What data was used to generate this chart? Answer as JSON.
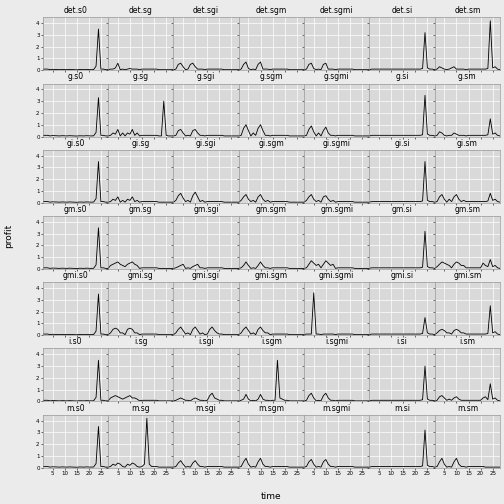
{
  "rows": [
    "det",
    "g",
    "gi",
    "gm",
    "gmi",
    "i",
    "m"
  ],
  "cols": [
    "s0",
    "sg",
    "sgi",
    "sgm",
    "sgmi",
    "si",
    "sm"
  ],
  "time_points": 28,
  "ylim": [
    0,
    4.5
  ],
  "yticks": [
    0,
    1,
    2,
    3,
    4
  ],
  "xticks": [
    5,
    10,
    15,
    20,
    25
  ],
  "xlabel": "time",
  "ylabel": "profit",
  "bg_color": "#EBEBEB",
  "plot_bg_color": "#D9D9D9",
  "grid_color": "#FFFFFF",
  "line_color": "#000000",
  "strip_bg": "#BFBFBF",
  "font_size": 5.5,
  "line_width": 0.6,
  "series": {
    "det.s0": [
      0.1,
      0.1,
      0.1,
      0.05,
      0.08,
      0.07,
      0.06,
      0.05,
      0.07,
      0.06,
      0.05,
      0.07,
      0.06,
      0.05,
      0.04,
      0.06,
      0.06,
      0.05,
      0.07,
      0.06,
      0.05,
      0.06,
      0.35,
      3.5,
      0.1,
      0.1,
      0.05,
      0.05
    ],
    "det.sg": [
      0.05,
      0.1,
      0.1,
      0.2,
      0.6,
      0.05,
      0.1,
      0.05,
      0.1,
      0.15,
      0.1,
      0.1,
      0.1,
      0.05,
      0.1,
      0.1,
      0.1,
      0.1,
      0.1,
      0.1,
      0.1,
      0.05,
      0.05,
      0.05,
      0.05,
      0.05,
      0.05,
      0.05
    ],
    "det.sgi": [
      0.05,
      0.1,
      0.5,
      0.6,
      0.3,
      0.05,
      0.1,
      0.5,
      0.6,
      0.3,
      0.1,
      0.1,
      0.1,
      0.05,
      0.1,
      0.1,
      0.1,
      0.1,
      0.1,
      0.1,
      0.1,
      0.05,
      0.05,
      0.05,
      0.05,
      0.05,
      0.05,
      0.05
    ],
    "det.sgm": [
      0.05,
      0.1,
      0.5,
      0.7,
      0.15,
      0.05,
      0.1,
      0.05,
      0.5,
      0.7,
      0.1,
      0.1,
      0.1,
      0.05,
      0.1,
      0.1,
      0.1,
      0.1,
      0.1,
      0.1,
      0.1,
      0.05,
      0.05,
      0.05,
      0.05,
      0.05,
      0.05,
      0.05
    ],
    "det.sgmi": [
      0.05,
      0.1,
      0.5,
      0.6,
      0.15,
      0.05,
      0.1,
      0.05,
      0.5,
      0.6,
      0.1,
      0.1,
      0.1,
      0.05,
      0.1,
      0.1,
      0.1,
      0.1,
      0.1,
      0.1,
      0.1,
      0.05,
      0.05,
      0.05,
      0.05,
      0.05,
      0.05,
      0.05
    ],
    "det.si": [
      0.05,
      0.1,
      0.1,
      0.1,
      0.1,
      0.1,
      0.1,
      0.1,
      0.1,
      0.1,
      0.1,
      0.1,
      0.1,
      0.1,
      0.1,
      0.1,
      0.1,
      0.1,
      0.1,
      0.1,
      0.1,
      0.1,
      0.15,
      3.2,
      0.2,
      0.1,
      0.1,
      0.05
    ],
    "det.sm": [
      0.05,
      0.1,
      0.3,
      0.2,
      0.1,
      0.05,
      0.1,
      0.2,
      0.3,
      0.1,
      0.1,
      0.1,
      0.1,
      0.05,
      0.1,
      0.1,
      0.1,
      0.1,
      0.1,
      0.1,
      0.1,
      0.1,
      0.15,
      4.2,
      0.2,
      0.3,
      0.1,
      0.05
    ],
    "g.s0": [
      0.1,
      0.1,
      0.1,
      0.05,
      0.08,
      0.07,
      0.06,
      0.05,
      0.07,
      0.06,
      0.05,
      0.07,
      0.06,
      0.05,
      0.04,
      0.06,
      0.06,
      0.05,
      0.07,
      0.06,
      0.05,
      0.06,
      0.35,
      3.3,
      0.1,
      0.1,
      0.05,
      0.05
    ],
    "g.sg": [
      0.05,
      0.1,
      0.3,
      0.2,
      0.6,
      0.05,
      0.3,
      0.05,
      0.3,
      0.2,
      0.6,
      0.1,
      0.3,
      0.05,
      0.1,
      0.1,
      0.1,
      0.1,
      0.1,
      0.1,
      0.1,
      0.05,
      0.05,
      3.0,
      0.1,
      0.05,
      0.05,
      0.05
    ],
    "g.sgi": [
      0.05,
      0.1,
      0.5,
      0.6,
      0.3,
      0.05,
      0.1,
      0.05,
      0.5,
      0.6,
      0.3,
      0.1,
      0.1,
      0.05,
      0.1,
      0.1,
      0.1,
      0.1,
      0.1,
      0.1,
      0.1,
      0.05,
      0.05,
      0.05,
      0.05,
      0.05,
      0.05,
      0.05
    ],
    "g.sgm": [
      0.05,
      0.1,
      0.7,
      1.0,
      0.5,
      0.05,
      0.3,
      0.1,
      0.7,
      1.0,
      0.5,
      0.1,
      0.1,
      0.05,
      0.1,
      0.1,
      0.1,
      0.1,
      0.1,
      0.1,
      0.1,
      0.05,
      0.05,
      0.05,
      0.05,
      0.05,
      0.05,
      0.05
    ],
    "g.sgmi": [
      0.05,
      0.1,
      0.6,
      0.9,
      0.4,
      0.05,
      0.3,
      0.05,
      0.5,
      0.8,
      0.3,
      0.1,
      0.1,
      0.05,
      0.1,
      0.1,
      0.1,
      0.1,
      0.1,
      0.1,
      0.1,
      0.05,
      0.05,
      0.05,
      0.05,
      0.05,
      0.05,
      0.05
    ],
    "g.si": [
      0.05,
      0.1,
      0.1,
      0.1,
      0.1,
      0.1,
      0.1,
      0.1,
      0.1,
      0.1,
      0.1,
      0.1,
      0.1,
      0.1,
      0.1,
      0.1,
      0.1,
      0.1,
      0.1,
      0.1,
      0.1,
      0.1,
      0.15,
      3.5,
      0.2,
      0.1,
      0.1,
      0.05
    ],
    "g.sm": [
      0.05,
      0.1,
      0.4,
      0.3,
      0.1,
      0.05,
      0.1,
      0.1,
      0.3,
      0.2,
      0.1,
      0.1,
      0.1,
      0.05,
      0.1,
      0.1,
      0.1,
      0.1,
      0.1,
      0.1,
      0.1,
      0.1,
      0.15,
      1.5,
      0.2,
      0.3,
      0.1,
      0.05
    ],
    "gi.s0": [
      0.1,
      0.1,
      0.1,
      0.05,
      0.08,
      0.07,
      0.06,
      0.05,
      0.07,
      0.06,
      0.05,
      0.07,
      0.06,
      0.05,
      0.04,
      0.06,
      0.06,
      0.05,
      0.07,
      0.06,
      0.05,
      0.06,
      0.35,
      3.5,
      0.1,
      0.1,
      0.05,
      0.05
    ],
    "gi.sg": [
      0.05,
      0.1,
      0.3,
      0.2,
      0.5,
      0.05,
      0.2,
      0.05,
      0.3,
      0.2,
      0.5,
      0.1,
      0.2,
      0.05,
      0.1,
      0.1,
      0.1,
      0.1,
      0.1,
      0.1,
      0.1,
      0.05,
      0.05,
      0.05,
      0.05,
      0.05,
      0.05,
      0.05
    ],
    "gi.sgi": [
      0.05,
      0.2,
      0.6,
      0.8,
      0.4,
      0.1,
      0.2,
      0.05,
      0.6,
      0.9,
      0.5,
      0.1,
      0.2,
      0.05,
      0.1,
      0.1,
      0.1,
      0.1,
      0.1,
      0.1,
      0.1,
      0.05,
      0.05,
      0.05,
      0.05,
      0.05,
      0.05,
      0.05
    ],
    "gi.sgm": [
      0.05,
      0.2,
      0.5,
      0.7,
      0.3,
      0.1,
      0.2,
      0.05,
      0.5,
      0.7,
      0.3,
      0.1,
      0.2,
      0.05,
      0.1,
      0.1,
      0.1,
      0.1,
      0.1,
      0.1,
      0.1,
      0.05,
      0.05,
      0.05,
      0.05,
      0.05,
      0.05,
      0.05
    ],
    "gi.sgmi": [
      0.05,
      0.2,
      0.5,
      0.7,
      0.3,
      0.1,
      0.2,
      0.05,
      0.5,
      0.6,
      0.3,
      0.1,
      0.2,
      0.05,
      0.1,
      0.1,
      0.1,
      0.1,
      0.1,
      0.1,
      0.1,
      0.05,
      0.05,
      0.05,
      0.05,
      0.05,
      0.05,
      0.05
    ],
    "gi.si": [
      0.05,
      0.1,
      0.1,
      0.1,
      0.1,
      0.1,
      0.1,
      0.1,
      0.1,
      0.1,
      0.1,
      0.1,
      0.1,
      0.1,
      0.1,
      0.1,
      0.1,
      0.1,
      0.1,
      0.1,
      0.1,
      0.1,
      0.15,
      3.5,
      0.2,
      0.1,
      0.1,
      0.05
    ],
    "gi.sm": [
      0.05,
      0.1,
      0.5,
      0.7,
      0.3,
      0.05,
      0.3,
      0.1,
      0.5,
      0.7,
      0.3,
      0.1,
      0.2,
      0.1,
      0.1,
      0.1,
      0.1,
      0.1,
      0.1,
      0.1,
      0.1,
      0.1,
      0.15,
      0.8,
      0.2,
      0.3,
      0.1,
      0.05
    ],
    "gm.s0": [
      0.1,
      0.1,
      0.1,
      0.05,
      0.08,
      0.07,
      0.06,
      0.05,
      0.07,
      0.06,
      0.05,
      0.07,
      0.06,
      0.05,
      0.04,
      0.06,
      0.06,
      0.05,
      0.07,
      0.06,
      0.05,
      0.06,
      0.35,
      3.5,
      0.1,
      0.1,
      0.05,
      0.05
    ],
    "gm.sg": [
      0.05,
      0.3,
      0.4,
      0.5,
      0.6,
      0.4,
      0.3,
      0.2,
      0.4,
      0.5,
      0.6,
      0.4,
      0.3,
      0.05,
      0.1,
      0.1,
      0.1,
      0.1,
      0.1,
      0.1,
      0.1,
      0.05,
      0.05,
      0.05,
      0.05,
      0.05,
      0.05,
      0.05
    ],
    "gm.sgi": [
      0.05,
      0.1,
      0.2,
      0.3,
      0.4,
      0.05,
      0.1,
      0.05,
      0.2,
      0.3,
      0.4,
      0.1,
      0.1,
      0.05,
      0.1,
      0.1,
      0.1,
      0.1,
      0.1,
      0.1,
      0.1,
      0.05,
      0.05,
      0.05,
      0.05,
      0.05,
      0.05,
      0.05
    ],
    "gm.sgm": [
      0.05,
      0.1,
      0.3,
      0.6,
      0.3,
      0.05,
      0.1,
      0.05,
      0.3,
      0.6,
      0.3,
      0.1,
      0.1,
      0.05,
      0.1,
      0.1,
      0.1,
      0.1,
      0.1,
      0.1,
      0.1,
      0.05,
      0.05,
      0.05,
      0.05,
      0.05,
      0.05,
      0.05
    ],
    "gm.sgmi": [
      0.05,
      0.1,
      0.4,
      0.7,
      0.5,
      0.3,
      0.4,
      0.1,
      0.4,
      0.7,
      0.5,
      0.3,
      0.4,
      0.05,
      0.1,
      0.1,
      0.1,
      0.1,
      0.1,
      0.1,
      0.1,
      0.05,
      0.05,
      0.05,
      0.05,
      0.05,
      0.05,
      0.05
    ],
    "gm.si": [
      0.05,
      0.1,
      0.1,
      0.1,
      0.1,
      0.1,
      0.1,
      0.1,
      0.1,
      0.1,
      0.1,
      0.1,
      0.1,
      0.1,
      0.1,
      0.1,
      0.1,
      0.1,
      0.1,
      0.1,
      0.1,
      0.1,
      0.15,
      3.2,
      0.2,
      0.1,
      0.1,
      0.05
    ],
    "gm.sm": [
      0.05,
      0.2,
      0.4,
      0.6,
      0.5,
      0.4,
      0.3,
      0.1,
      0.4,
      0.6,
      0.5,
      0.3,
      0.3,
      0.1,
      0.1,
      0.1,
      0.1,
      0.1,
      0.1,
      0.1,
      0.5,
      0.3,
      0.2,
      0.8,
      0.2,
      0.3,
      0.1,
      0.05
    ],
    "gmi.s0": [
      0.1,
      0.1,
      0.1,
      0.05,
      0.08,
      0.07,
      0.06,
      0.05,
      0.07,
      0.06,
      0.05,
      0.07,
      0.06,
      0.05,
      0.04,
      0.06,
      0.06,
      0.05,
      0.07,
      0.06,
      0.05,
      0.06,
      0.35,
      3.5,
      0.1,
      0.1,
      0.05,
      0.05
    ],
    "gmi.sg": [
      0.05,
      0.2,
      0.5,
      0.6,
      0.5,
      0.2,
      0.2,
      0.05,
      0.5,
      0.6,
      0.5,
      0.2,
      0.2,
      0.05,
      0.1,
      0.1,
      0.1,
      0.1,
      0.1,
      0.1,
      0.1,
      0.05,
      0.05,
      0.05,
      0.05,
      0.05,
      0.05,
      0.05
    ],
    "gmi.sgi": [
      0.05,
      0.2,
      0.5,
      0.7,
      0.4,
      0.1,
      0.2,
      0.05,
      0.5,
      0.7,
      0.4,
      0.1,
      0.2,
      0.05,
      0.1,
      0.5,
      0.7,
      0.4,
      0.2,
      0.1,
      0.1,
      0.05,
      0.05,
      0.05,
      0.05,
      0.05,
      0.05,
      0.05
    ],
    "gmi.sgm": [
      0.05,
      0.2,
      0.5,
      0.7,
      0.4,
      0.1,
      0.2,
      0.05,
      0.5,
      0.7,
      0.4,
      0.2,
      0.2,
      0.05,
      0.1,
      0.1,
      0.1,
      0.1,
      0.1,
      0.1,
      0.1,
      0.05,
      0.05,
      0.05,
      0.05,
      0.05,
      0.05,
      0.05
    ],
    "gmi.sgmi": [
      0.05,
      0.1,
      0.1,
      0.1,
      3.6,
      0.1,
      0.1,
      0.05,
      0.1,
      0.1,
      0.1,
      0.1,
      0.1,
      0.05,
      0.1,
      0.1,
      0.1,
      0.1,
      0.1,
      0.1,
      0.1,
      0.05,
      0.05,
      0.05,
      0.05,
      0.05,
      0.05,
      0.05
    ],
    "gmi.si": [
      0.05,
      0.1,
      0.1,
      0.1,
      0.1,
      0.1,
      0.1,
      0.1,
      0.1,
      0.1,
      0.1,
      0.1,
      0.1,
      0.1,
      0.1,
      0.1,
      0.1,
      0.1,
      0.1,
      0.1,
      0.1,
      0.1,
      0.15,
      1.5,
      0.2,
      0.1,
      0.1,
      0.05
    ],
    "gmi.sm": [
      0.05,
      0.2,
      0.4,
      0.5,
      0.4,
      0.2,
      0.2,
      0.1,
      0.4,
      0.5,
      0.4,
      0.2,
      0.2,
      0.1,
      0.1,
      0.1,
      0.1,
      0.1,
      0.1,
      0.1,
      0.1,
      0.1,
      0.15,
      2.5,
      0.2,
      0.3,
      0.1,
      0.05
    ],
    "i.s0": [
      0.1,
      0.1,
      0.1,
      0.05,
      0.08,
      0.07,
      0.06,
      0.05,
      0.07,
      0.06,
      0.05,
      0.07,
      0.06,
      0.05,
      0.04,
      0.06,
      0.06,
      0.05,
      0.07,
      0.06,
      0.05,
      0.06,
      0.35,
      3.5,
      0.1,
      0.1,
      0.05,
      0.05
    ],
    "i.sg": [
      0.05,
      0.3,
      0.4,
      0.5,
      0.4,
      0.3,
      0.2,
      0.3,
      0.4,
      0.5,
      0.3,
      0.3,
      0.2,
      0.05,
      0.1,
      0.1,
      0.1,
      0.1,
      0.1,
      0.1,
      0.1,
      0.05,
      0.05,
      0.05,
      0.05,
      0.05,
      0.05,
      0.05
    ],
    "i.sgi": [
      0.05,
      0.1,
      0.2,
      0.3,
      0.2,
      0.1,
      0.1,
      0.05,
      0.2,
      0.3,
      0.2,
      0.1,
      0.1,
      0.05,
      0.1,
      0.5,
      0.7,
      0.3,
      0.2,
      0.1,
      0.1,
      0.05,
      0.05,
      0.05,
      0.05,
      0.05,
      0.05,
      0.05
    ],
    "i.sgm": [
      0.05,
      0.1,
      0.2,
      0.6,
      0.2,
      0.05,
      0.1,
      0.05,
      0.2,
      0.6,
      0.2,
      0.1,
      0.1,
      0.05,
      0.1,
      0.1,
      3.5,
      0.3,
      0.2,
      0.1,
      0.1,
      0.05,
      0.05,
      0.05,
      0.05,
      0.05,
      0.05,
      0.05
    ],
    "i.sgmi": [
      0.05,
      0.1,
      0.5,
      0.7,
      0.3,
      0.05,
      0.1,
      0.05,
      0.5,
      0.7,
      0.3,
      0.1,
      0.1,
      0.05,
      0.1,
      0.1,
      0.1,
      0.1,
      0.1,
      0.1,
      0.1,
      0.05,
      0.05,
      0.05,
      0.05,
      0.05,
      0.05,
      0.05
    ],
    "i.si": [
      0.05,
      0.1,
      0.1,
      0.1,
      0.1,
      0.1,
      0.1,
      0.1,
      0.1,
      0.1,
      0.1,
      0.1,
      0.1,
      0.1,
      0.1,
      0.1,
      0.1,
      0.1,
      0.1,
      0.1,
      0.1,
      0.1,
      0.15,
      3.0,
      0.2,
      0.1,
      0.1,
      0.05
    ],
    "i.sm": [
      0.05,
      0.1,
      0.4,
      0.5,
      0.3,
      0.1,
      0.2,
      0.1,
      0.3,
      0.4,
      0.2,
      0.1,
      0.1,
      0.1,
      0.1,
      0.1,
      0.1,
      0.1,
      0.1,
      0.1,
      0.3,
      0.4,
      0.15,
      1.5,
      0.2,
      0.3,
      0.1,
      0.05
    ],
    "m.s0": [
      0.1,
      0.1,
      0.1,
      0.05,
      0.08,
      0.07,
      0.06,
      0.05,
      0.07,
      0.06,
      0.05,
      0.07,
      0.06,
      0.05,
      0.04,
      0.06,
      0.06,
      0.05,
      0.07,
      0.06,
      0.05,
      0.06,
      0.35,
      3.5,
      0.1,
      0.1,
      0.05,
      0.05
    ],
    "m.sg": [
      0.05,
      0.1,
      0.3,
      0.2,
      0.4,
      0.3,
      0.1,
      0.05,
      0.3,
      0.2,
      0.4,
      0.3,
      0.1,
      0.05,
      0.1,
      0.3,
      4.2,
      0.3,
      0.1,
      0.1,
      0.1,
      0.05,
      0.05,
      0.05,
      0.05,
      0.05,
      0.05,
      0.05
    ],
    "m.sgi": [
      0.05,
      0.1,
      0.4,
      0.6,
      0.3,
      0.05,
      0.1,
      0.05,
      0.4,
      0.6,
      0.3,
      0.1,
      0.1,
      0.05,
      0.1,
      0.1,
      0.1,
      0.1,
      0.1,
      0.1,
      0.1,
      0.05,
      0.05,
      0.05,
      0.05,
      0.05,
      0.05,
      0.05
    ],
    "m.sgm": [
      0.05,
      0.1,
      0.5,
      0.8,
      0.3,
      0.05,
      0.1,
      0.05,
      0.5,
      0.8,
      0.3,
      0.1,
      0.1,
      0.05,
      0.1,
      0.1,
      0.1,
      0.1,
      0.1,
      0.1,
      0.1,
      0.05,
      0.05,
      0.05,
      0.05,
      0.05,
      0.05,
      0.05
    ],
    "m.sgmi": [
      0.05,
      0.1,
      0.5,
      0.7,
      0.3,
      0.05,
      0.1,
      0.05,
      0.5,
      0.7,
      0.3,
      0.1,
      0.1,
      0.05,
      0.1,
      0.1,
      0.1,
      0.1,
      0.1,
      0.1,
      0.1,
      0.05,
      0.05,
      0.05,
      0.05,
      0.05,
      0.05,
      0.05
    ],
    "m.si": [
      0.05,
      0.1,
      0.1,
      0.1,
      0.1,
      0.1,
      0.1,
      0.1,
      0.1,
      0.1,
      0.1,
      0.1,
      0.1,
      0.1,
      0.1,
      0.1,
      0.1,
      0.1,
      0.1,
      0.1,
      0.1,
      0.1,
      0.15,
      3.2,
      0.2,
      0.1,
      0.1,
      0.05
    ],
    "m.sm": [
      0.05,
      0.1,
      0.5,
      0.8,
      0.3,
      0.05,
      0.1,
      0.05,
      0.5,
      0.8,
      0.3,
      0.1,
      0.1,
      0.05,
      0.1,
      0.1,
      0.1,
      0.1,
      0.1,
      0.1,
      0.1,
      0.05,
      0.05,
      0.05,
      0.05,
      0.05,
      0.05,
      0.05
    ]
  }
}
